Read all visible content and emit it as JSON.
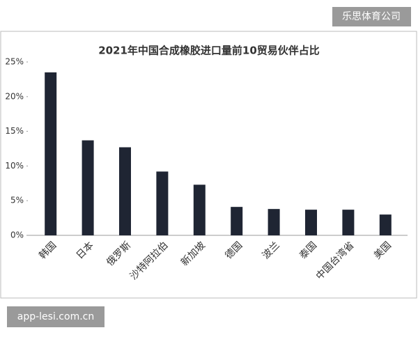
{
  "badge": "乐思体育公司",
  "footer": "app-lesi.com.cn",
  "chart_data": {
    "type": "bar",
    "title": "2021年中国合成橡胶进口量前10贸易伙伴占比",
    "categories": [
      "韩国",
      "日本",
      "俄罗斯",
      "沙特阿拉伯",
      "新加坡",
      "德国",
      "波兰",
      "泰国",
      "中国台湾省",
      "美国"
    ],
    "values": [
      23.5,
      13.7,
      12.7,
      9.2,
      7.3,
      4.1,
      3.8,
      3.7,
      3.7,
      3.0
    ],
    "color": "#1f2533",
    "ylim": [
      0,
      25
    ],
    "yticks": [
      {
        "value": 0,
        "label": "0%"
      },
      {
        "value": 5,
        "label": "5%"
      },
      {
        "value": 10,
        "label": "10%"
      },
      {
        "value": 15,
        "label": "15%"
      },
      {
        "value": 20,
        "label": "20%"
      },
      {
        "value": 25,
        "label": "25%"
      }
    ],
    "grid": false
  }
}
